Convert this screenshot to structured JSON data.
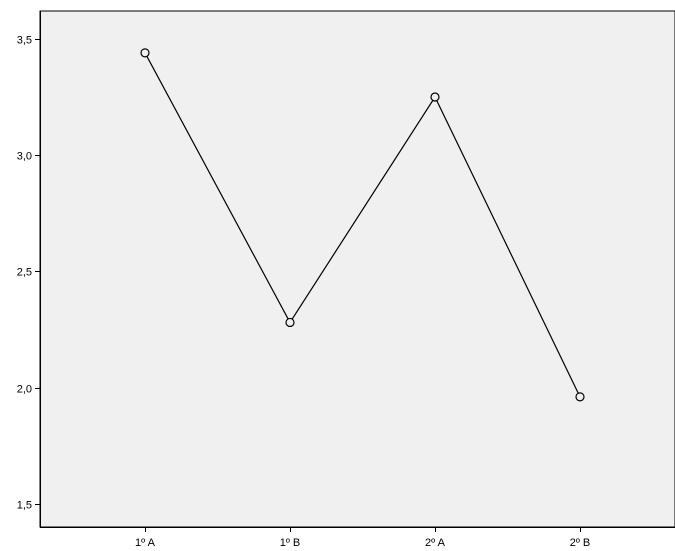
{
  "chart_data": {
    "type": "line",
    "categories": [
      "1º A",
      "1º B",
      "2º A",
      "2º B"
    ],
    "series": [
      {
        "values": [
          3.44,
          2.28,
          3.25,
          1.96
        ]
      }
    ],
    "title": "",
    "xlabel": "",
    "ylabel": "",
    "ylim": [
      1.4,
      3.62
    ],
    "yticks": [
      {
        "value": 1.5,
        "label": "1,5"
      },
      {
        "value": 2.0,
        "label": "2,0"
      },
      {
        "value": 2.5,
        "label": "2,5"
      },
      {
        "value": 3.0,
        "label": "3,0"
      },
      {
        "value": 3.5,
        "label": "3,5"
      }
    ],
    "grid": false,
    "colors": {
      "plot_background": "#f0f0f0",
      "line": "#000000",
      "frame": "#000000"
    },
    "marker": "open-circle"
  }
}
